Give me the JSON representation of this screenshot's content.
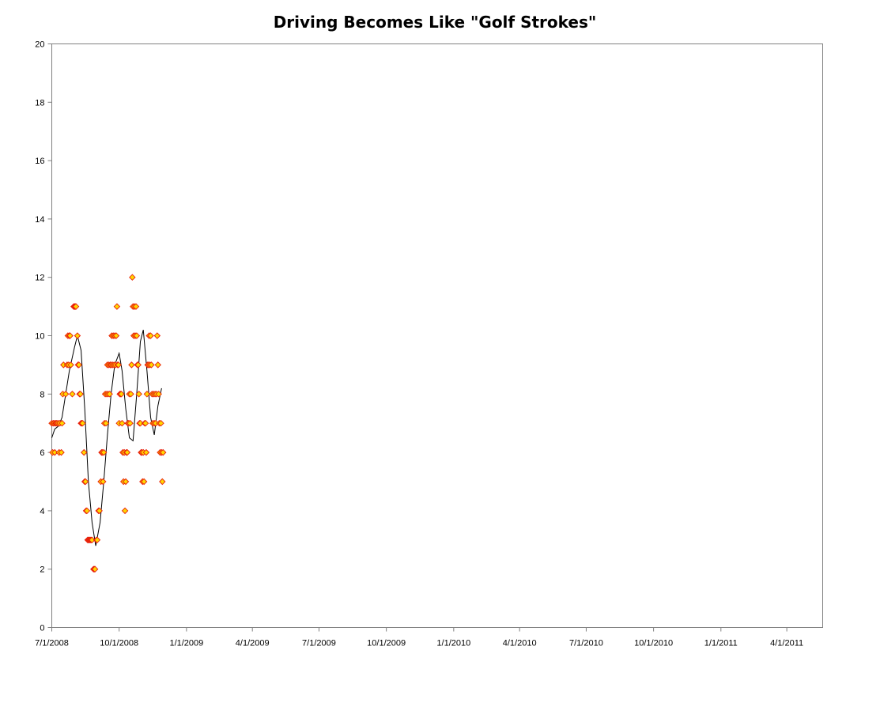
{
  "chart_data": {
    "type": "scatter",
    "title": "Driving Becomes Like \"Golf Strokes\"",
    "xlabel": "",
    "ylabel": "",
    "ylim": [
      0,
      20
    ],
    "xlim": [
      "2008-07-01",
      "2011-05-20"
    ],
    "y_ticks": [
      0,
      2,
      4,
      6,
      8,
      10,
      12,
      14,
      16,
      18,
      20
    ],
    "x_ticks": [
      {
        "date": "2008-07-01",
        "label": "7/1/2008"
      },
      {
        "date": "2008-10-01",
        "label": "10/1/2008"
      },
      {
        "date": "2009-01-01",
        "label": "1/1/2009"
      },
      {
        "date": "2009-04-01",
        "label": "4/1/2009"
      },
      {
        "date": "2009-07-01",
        "label": "7/1/2009"
      },
      {
        "date": "2009-10-01",
        "label": "10/1/2009"
      },
      {
        "date": "2010-01-01",
        "label": "1/1/2010"
      },
      {
        "date": "2010-04-01",
        "label": "4/1/2010"
      },
      {
        "date": "2010-07-01",
        "label": "7/1/2010"
      },
      {
        "date": "2010-10-01",
        "label": "10/1/2010"
      },
      {
        "date": "2011-01-01",
        "label": "1/1/2011"
      },
      {
        "date": "2011-04-01",
        "label": "4/1/2011"
      }
    ],
    "grid": false,
    "legend": "none",
    "marker_fill": "#FFD700",
    "marker_stroke": "#E8200C",
    "line_color": "#000000",
    "series": [
      {
        "type": "scatter",
        "points": [
          [
            "2008-07-01",
            7
          ],
          [
            "2008-07-02",
            6
          ],
          [
            "2008-07-03",
            7
          ],
          [
            "2008-07-04",
            7
          ],
          [
            "2008-07-05",
            6
          ],
          [
            "2008-07-06",
            7
          ],
          [
            "2008-07-07",
            7
          ],
          [
            "2008-07-08",
            7
          ],
          [
            "2008-07-10",
            7
          ],
          [
            "2008-07-11",
            6
          ],
          [
            "2008-07-12",
            7
          ],
          [
            "2008-07-14",
            6
          ],
          [
            "2008-07-15",
            7
          ],
          [
            "2008-07-16",
            8
          ],
          [
            "2008-07-17",
            9
          ],
          [
            "2008-07-20",
            8
          ],
          [
            "2008-07-22",
            9
          ],
          [
            "2008-07-23",
            10
          ],
          [
            "2008-07-24",
            9
          ],
          [
            "2008-07-25",
            10
          ],
          [
            "2008-07-26",
            10
          ],
          [
            "2008-07-27",
            9
          ],
          [
            "2008-07-29",
            8
          ],
          [
            "2008-07-31",
            11
          ],
          [
            "2008-08-01",
            11
          ],
          [
            "2008-08-02",
            11
          ],
          [
            "2008-08-03",
            11
          ],
          [
            "2008-08-05",
            10
          ],
          [
            "2008-08-06",
            9
          ],
          [
            "2008-08-07",
            9
          ],
          [
            "2008-08-08",
            8
          ],
          [
            "2008-08-09",
            8
          ],
          [
            "2008-08-10",
            7
          ],
          [
            "2008-08-11",
            7
          ],
          [
            "2008-08-12",
            7
          ],
          [
            "2008-08-14",
            6
          ],
          [
            "2008-08-15",
            5
          ],
          [
            "2008-08-16",
            5
          ],
          [
            "2008-08-17",
            4
          ],
          [
            "2008-08-18",
            4
          ],
          [
            "2008-08-19",
            3
          ],
          [
            "2008-08-20",
            3
          ],
          [
            "2008-08-21",
            3
          ],
          [
            "2008-08-22",
            3
          ],
          [
            "2008-08-23",
            3
          ],
          [
            "2008-08-24",
            3
          ],
          [
            "2008-08-25",
            3
          ],
          [
            "2008-08-27",
            2
          ],
          [
            "2008-08-28",
            2
          ],
          [
            "2008-08-29",
            2
          ],
          [
            "2008-08-31",
            3
          ],
          [
            "2008-09-01",
            3
          ],
          [
            "2008-09-03",
            4
          ],
          [
            "2008-09-04",
            4
          ],
          [
            "2008-09-06",
            5
          ],
          [
            "2008-09-07",
            6
          ],
          [
            "2008-09-08",
            6
          ],
          [
            "2008-09-09",
            5
          ],
          [
            "2008-09-10",
            6
          ],
          [
            "2008-09-11",
            7
          ],
          [
            "2008-09-12",
            8
          ],
          [
            "2008-09-13",
            7
          ],
          [
            "2008-09-14",
            8
          ],
          [
            "2008-09-15",
            9
          ],
          [
            "2008-09-16",
            8
          ],
          [
            "2008-09-17",
            9
          ],
          [
            "2008-09-18",
            8
          ],
          [
            "2008-09-19",
            9
          ],
          [
            "2008-09-20",
            9
          ],
          [
            "2008-09-21",
            10
          ],
          [
            "2008-09-22",
            9
          ],
          [
            "2008-09-23",
            10
          ],
          [
            "2008-09-24",
            9
          ],
          [
            "2008-09-25",
            10
          ],
          [
            "2008-09-26",
            9
          ],
          [
            "2008-09-27",
            10
          ],
          [
            "2008-09-28",
            11
          ],
          [
            "2008-09-29",
            9
          ],
          [
            "2008-09-30",
            9
          ],
          [
            "2008-10-01",
            7
          ],
          [
            "2008-10-02",
            8
          ],
          [
            "2008-10-03",
            8
          ],
          [
            "2008-10-04",
            8
          ],
          [
            "2008-10-05",
            7
          ],
          [
            "2008-10-06",
            6
          ],
          [
            "2008-10-07",
            5
          ],
          [
            "2008-10-08",
            6
          ],
          [
            "2008-10-09",
            4
          ],
          [
            "2008-10-10",
            5
          ],
          [
            "2008-10-11",
            6
          ],
          [
            "2008-10-12",
            6
          ],
          [
            "2008-10-13",
            7
          ],
          [
            "2008-10-14",
            7
          ],
          [
            "2008-10-15",
            8
          ],
          [
            "2008-10-16",
            7
          ],
          [
            "2008-10-17",
            8
          ],
          [
            "2008-10-18",
            9
          ],
          [
            "2008-10-19",
            12
          ],
          [
            "2008-10-20",
            11
          ],
          [
            "2008-10-21",
            10
          ],
          [
            "2008-10-22",
            11
          ],
          [
            "2008-10-23",
            10
          ],
          [
            "2008-10-24",
            11
          ],
          [
            "2008-10-25",
            10
          ],
          [
            "2008-10-26",
            9
          ],
          [
            "2008-10-27",
            9
          ],
          [
            "2008-10-28",
            8
          ],
          [
            "2008-10-29",
            7
          ],
          [
            "2008-10-30",
            7
          ],
          [
            "2008-10-31",
            6
          ],
          [
            "2008-11-01",
            6
          ],
          [
            "2008-11-02",
            5
          ],
          [
            "2008-11-03",
            6
          ],
          [
            "2008-11-04",
            5
          ],
          [
            "2008-11-05",
            7
          ],
          [
            "2008-11-06",
            7
          ],
          [
            "2008-11-07",
            6
          ],
          [
            "2008-11-08",
            8
          ],
          [
            "2008-11-09",
            9
          ],
          [
            "2008-11-10",
            9
          ],
          [
            "2008-11-11",
            10
          ],
          [
            "2008-11-12",
            9
          ],
          [
            "2008-11-13",
            10
          ],
          [
            "2008-11-14",
            9
          ],
          [
            "2008-11-15",
            8
          ],
          [
            "2008-11-16",
            7
          ],
          [
            "2008-11-17",
            8
          ],
          [
            "2008-11-18",
            7
          ],
          [
            "2008-11-19",
            8
          ],
          [
            "2008-11-20",
            7
          ],
          [
            "2008-11-21",
            8
          ],
          [
            "2008-11-22",
            10
          ],
          [
            "2008-11-23",
            9
          ],
          [
            "2008-11-24",
            8
          ],
          [
            "2008-11-25",
            7
          ],
          [
            "2008-11-26",
            6
          ],
          [
            "2008-11-27",
            7
          ],
          [
            "2008-11-28",
            6
          ],
          [
            "2008-11-29",
            5
          ],
          [
            "2008-11-30",
            6
          ]
        ]
      },
      {
        "type": "line",
        "points": [
          [
            "2008-07-01",
            6.5
          ],
          [
            "2008-07-05",
            6.8
          ],
          [
            "2008-07-10",
            6.9
          ],
          [
            "2008-07-15",
            7.2
          ],
          [
            "2008-07-20",
            8.0
          ],
          [
            "2008-07-25",
            8.8
          ],
          [
            "2008-08-01",
            9.6
          ],
          [
            "2008-08-05",
            10.0
          ],
          [
            "2008-08-10",
            9.5
          ],
          [
            "2008-08-15",
            7.5
          ],
          [
            "2008-08-20",
            5.0
          ],
          [
            "2008-08-25",
            3.6
          ],
          [
            "2008-08-30",
            2.8
          ],
          [
            "2008-09-05",
            3.6
          ],
          [
            "2008-09-10",
            5.0
          ],
          [
            "2008-09-15",
            6.6
          ],
          [
            "2008-09-20",
            8.0
          ],
          [
            "2008-09-25",
            9.0
          ],
          [
            "2008-10-01",
            9.4
          ],
          [
            "2008-10-05",
            8.8
          ],
          [
            "2008-10-10",
            7.5
          ],
          [
            "2008-10-15",
            6.5
          ],
          [
            "2008-10-20",
            6.4
          ],
          [
            "2008-10-25",
            8.0
          ],
          [
            "2008-10-30",
            9.8
          ],
          [
            "2008-11-03",
            10.2
          ],
          [
            "2008-11-08",
            8.8
          ],
          [
            "2008-11-13",
            7.2
          ],
          [
            "2008-11-18",
            6.6
          ],
          [
            "2008-11-23",
            7.6
          ],
          [
            "2008-11-28",
            8.2
          ]
        ]
      }
    ]
  }
}
